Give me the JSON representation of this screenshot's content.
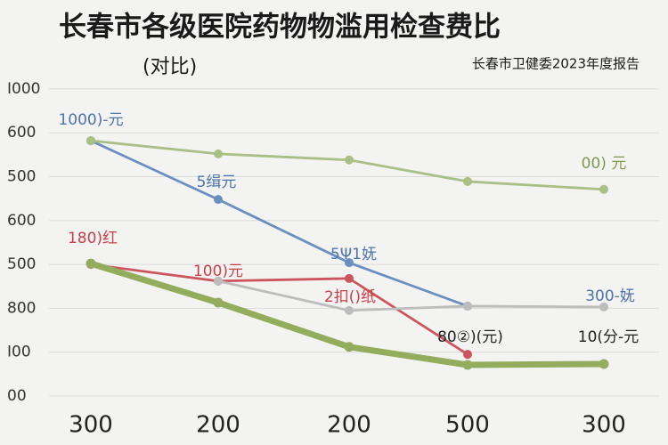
{
  "chart_data": {
    "type": "line",
    "title": "长春市各级医院药物物滥用检查费比",
    "subtitle": "(对比)",
    "source": "长春市卫健委2023年度报告",
    "categories": [
      "300",
      "200",
      "200",
      "500",
      "300"
    ],
    "series": [
      {
        "name": "蓝线",
        "color": "#6a8fc0",
        "values": [
          5.82,
          4.48,
          3.04,
          2.05,
          null
        ]
      },
      {
        "name": "浅绿线",
        "color": "#a8bf86",
        "values": [
          5.82,
          5.52,
          5.38,
          4.89,
          4.71
        ]
      },
      {
        "name": "红线",
        "color": "#cc555d",
        "values": [
          3.0,
          2.62,
          2.68,
          0.95,
          null
        ]
      },
      {
        "name": "灰线",
        "color": "#bdbdbd",
        "values": [
          null,
          2.62,
          1.95,
          2.05,
          2.03
        ]
      },
      {
        "name": "粗绿线",
        "color": "#93ad5c",
        "values": [
          3.02,
          2.13,
          1.12,
          0.71,
          0.73
        ]
      }
    ],
    "ylim": [
      0,
      7.2
    ],
    "yticks": [
      {
        "value": 0,
        "label": "00"
      },
      {
        "value": 1,
        "label": "I00"
      },
      {
        "value": 2,
        "label": "800"
      },
      {
        "value": 3,
        "label": "500"
      },
      {
        "value": 4,
        "label": "600"
      },
      {
        "value": 5,
        "label": "500"
      },
      {
        "value": 6,
        "label": "600"
      },
      {
        "value": 7,
        "label": "I000"
      }
    ],
    "grid": true,
    "annotations": [
      {
        "text": "1000)-元",
        "color": "#4f74a8"
      },
      {
        "text": "5缉元",
        "color": "#4f74a8"
      },
      {
        "text": "5Ψ1妩",
        "color": "#4f74a8"
      },
      {
        "text": "300-妩",
        "color": "#4f74a8"
      },
      {
        "text": "180)红",
        "color": "#c8404a"
      },
      {
        "text": "100)元",
        "color": "#c8404a"
      },
      {
        "text": "2扣()纸",
        "color": "#c8404a"
      },
      {
        "text": "80②)(元)",
        "color": "#222222"
      },
      {
        "text": "10(分-元",
        "color": "#222222"
      },
      {
        "text": "00) 元",
        "color": "#7f9a4e"
      }
    ]
  }
}
